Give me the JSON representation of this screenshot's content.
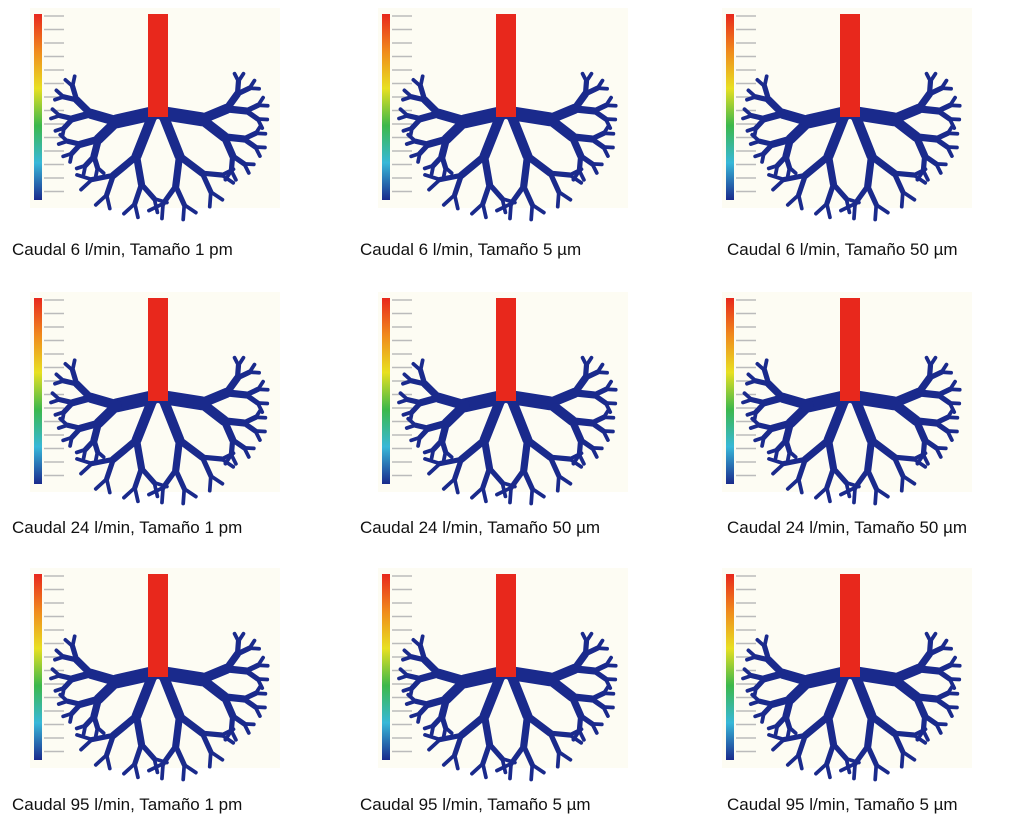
{
  "panels": [
    {
      "caption": "Caudal 6 l/min, Tamaño 1 pm"
    },
    {
      "caption": "Caudal 6 l/min, Tamaño 5 µm"
    },
    {
      "caption": "Caudal 6 l/min, Tamaño 50 µm"
    },
    {
      "caption": "Caudal 24 l/min, Tamaño 1 pm"
    },
    {
      "caption": "Caudal 24 l/min, Tamaño 50 µm"
    },
    {
      "caption": "Caudal 24 l/min, Tamaño 50 µm"
    },
    {
      "caption": "Caudal 95 l/min, Tamaño 1 pm"
    },
    {
      "caption": "Caudal 95 l/min, Tamaño 5 µm"
    },
    {
      "caption": "Caudal 95 l/min, Tamaño 5 µm"
    }
  ]
}
